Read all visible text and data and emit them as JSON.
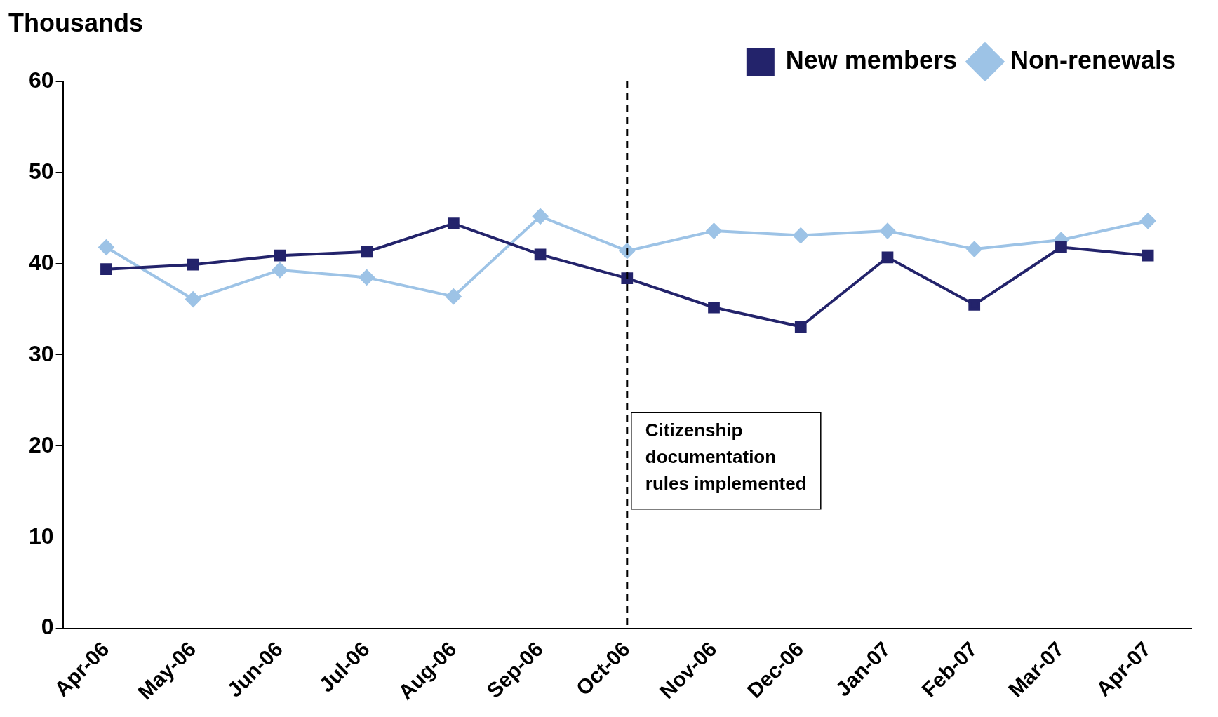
{
  "chart_data": {
    "type": "line",
    "ylabel": "Thousands",
    "categories": [
      "Apr-06",
      "May-06",
      "Jun-06",
      "Jul-06",
      "Aug-06",
      "Sep-06",
      "Oct-06",
      "Nov-06",
      "Dec-06",
      "Jan-07",
      "Feb-07",
      "Mar-07",
      "Apr-07"
    ],
    "series": [
      {
        "name": "New members",
        "color": "#23236b",
        "marker": "square",
        "values": [
          39.4,
          39.9,
          40.9,
          41.3,
          44.4,
          41.0,
          38.4,
          35.2,
          33.1,
          40.7,
          35.5,
          41.8,
          40.9
        ]
      },
      {
        "name": "Non-renewals",
        "color": "#9dc3e6",
        "marker": "diamond",
        "values": [
          41.8,
          36.1,
          39.3,
          38.5,
          36.4,
          45.2,
          41.4,
          43.6,
          43.1,
          43.6,
          41.6,
          42.6,
          44.7
        ]
      }
    ],
    "ylim": [
      0,
      60
    ],
    "yticks": [
      0,
      10,
      20,
      30,
      40,
      50,
      60
    ],
    "grid": false,
    "legend": "top right",
    "line_style": "solid",
    "ref_lines": [
      {
        "axis": "x",
        "value": "Oct-06",
        "label": "Citizenship documentation rules implemented",
        "color": "#000000",
        "line_style": "dashed"
      }
    ]
  }
}
